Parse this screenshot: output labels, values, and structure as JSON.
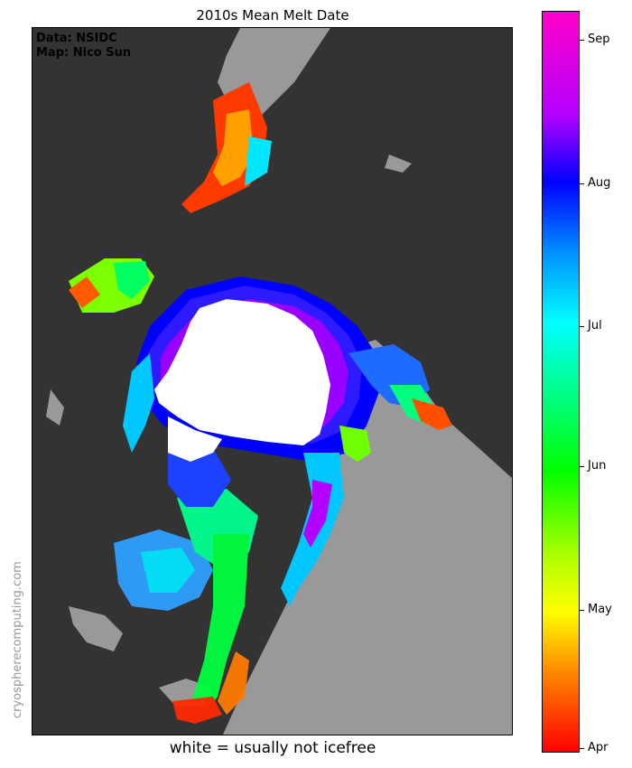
{
  "title": "2010s Mean Melt Date",
  "credits": {
    "data": "Data: NSIDC",
    "map": "Map: Nico Sun"
  },
  "watermark": "cryospherecomputing.com",
  "footnote": "white = usually not icefree",
  "colors": {
    "ocean": "#333333",
    "land": "#999999",
    "never_icefree": "#ffffff"
  },
  "colorbar": {
    "labels": [
      "Sep",
      "Aug",
      "Jul",
      "Jun",
      "May",
      "Apr"
    ],
    "colormap": [
      "#ff0000",
      "#ff8c00",
      "#ffff00",
      "#b4ff00",
      "#00ff00",
      "#00ff80",
      "#00ffff",
      "#0096ff",
      "#0000ff",
      "#b400ff",
      "#ff00c8"
    ]
  }
}
